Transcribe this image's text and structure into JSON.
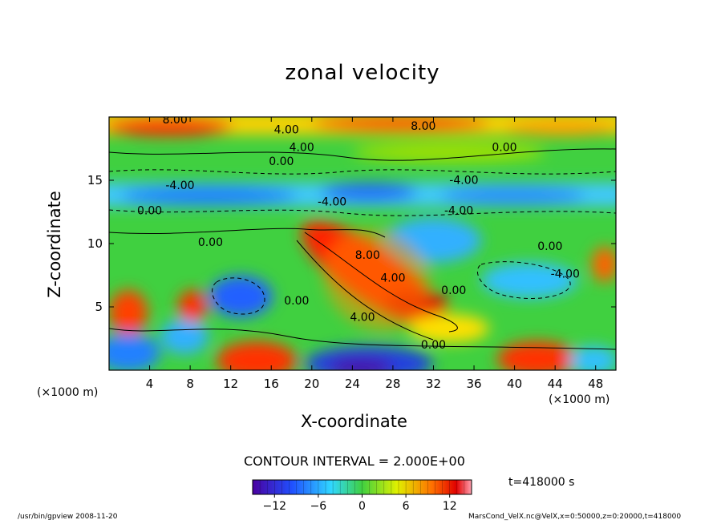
{
  "chart_data": {
    "type": "heatmap",
    "title": "zonal velocity",
    "xlabel": "X-coordinate",
    "ylabel": "Z-coordinate",
    "x_unit_label": "(×1000 m)",
    "y_unit_label": "(×1000 m)",
    "xlim": [
      0,
      50
    ],
    "ylim": [
      0,
      20
    ],
    "x_ticks": [
      4,
      8,
      12,
      16,
      20,
      24,
      28,
      32,
      36,
      40,
      44,
      48
    ],
    "y_ticks": [
      5,
      10,
      15
    ],
    "contour_interval_text": "CONTOUR INTERVAL = 2.000E+00",
    "contour_labels": [
      {
        "text": "8.00",
        "x": 6.5,
        "y": 19.5
      },
      {
        "text": "4.00",
        "x": 17.5,
        "y": 18.7
      },
      {
        "text": "4.00",
        "x": 19.0,
        "y": 17.3
      },
      {
        "text": "0.00",
        "x": 17.0,
        "y": 16.2
      },
      {
        "text": "8.00",
        "x": 31.0,
        "y": 19.0
      },
      {
        "text": "0.00",
        "x": 39.0,
        "y": 17.3
      },
      {
        "text": "-4.00",
        "x": 7.0,
        "y": 14.3
      },
      {
        "text": "0.00",
        "x": 4.0,
        "y": 12.3
      },
      {
        "text": "-4.00",
        "x": 22.0,
        "y": 13.0
      },
      {
        "text": "-4.00",
        "x": 35.0,
        "y": 14.7
      },
      {
        "text": "-4.00",
        "x": 34.5,
        "y": 12.3
      },
      {
        "text": "0.00",
        "x": 10.0,
        "y": 9.8
      },
      {
        "text": "8.00",
        "x": 25.5,
        "y": 8.8
      },
      {
        "text": "4.00",
        "x": 28.0,
        "y": 7.0
      },
      {
        "text": "0.00",
        "x": 34.0,
        "y": 6.0
      },
      {
        "text": "0.00",
        "x": 43.5,
        "y": 9.5
      },
      {
        "text": "-4.00",
        "x": 45.0,
        "y": 7.3
      },
      {
        "text": "0.00",
        "x": 18.5,
        "y": 5.2
      },
      {
        "text": "4.00",
        "x": 25.0,
        "y": 3.9
      },
      {
        "text": "0.00",
        "x": 32.0,
        "y": 1.7
      }
    ],
    "colorbar": {
      "min": -15,
      "max": 15,
      "ticks": [
        -12,
        -6,
        0,
        6,
        12
      ]
    },
    "colors": {
      "deep_negative": "#4a00a0",
      "negative": "#2060ff",
      "weak_negative": "#30d0ff",
      "zero": "#40d040",
      "weak_positive": "#e0f000",
      "positive": "#ff8000",
      "strong_positive": "#e00000",
      "extreme_positive": "#ffa0b0"
    },
    "time_label": "t=418000 s"
  },
  "footer": {
    "left": "/usr/bin/gpview  2008-11-20",
    "right": "MarsCond_VelX.nc@VelX,x=0:50000,z=0:20000,t=418000"
  }
}
